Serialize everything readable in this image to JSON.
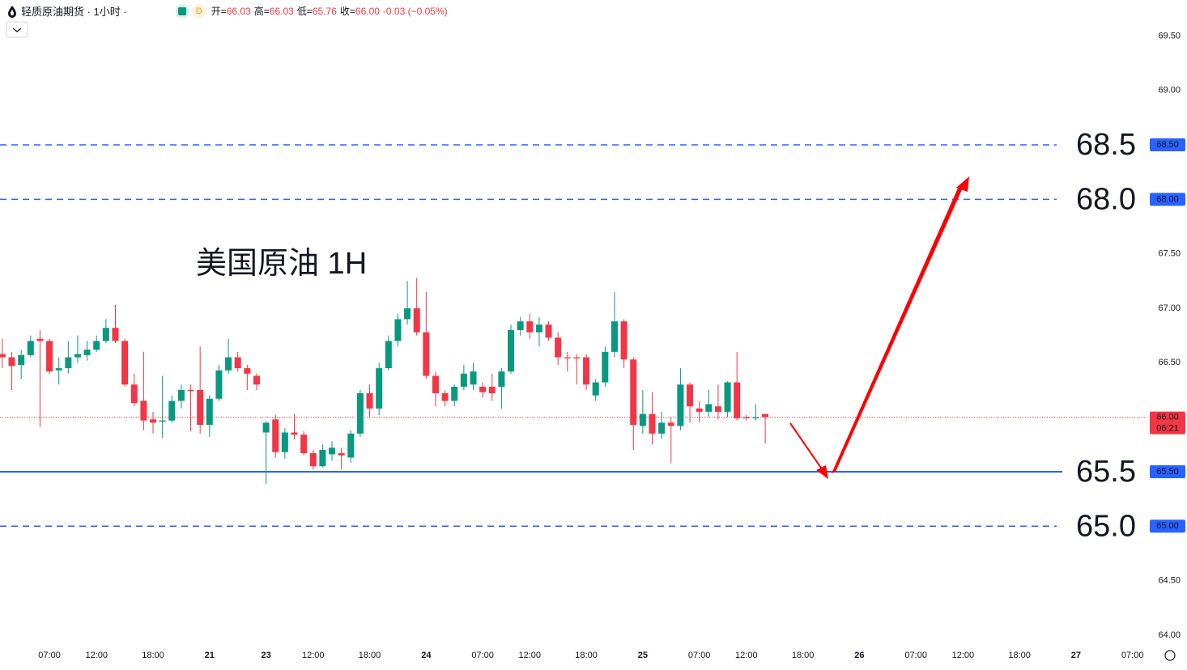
{
  "header": {
    "symbol": "轻质原油期货 · 1小时 ·",
    "badge": "D",
    "items": [
      {
        "label": "开=",
        "value": "66.03"
      },
      {
        "label": "高=",
        "value": "66.03"
      },
      {
        "label": "低=",
        "value": "65.76"
      },
      {
        "label": "收=",
        "value": "66.00"
      }
    ],
    "change": "-0.03 (−0.05%)"
  },
  "chart_data": {
    "type": "candlestick",
    "annotation": "美国原油 1H",
    "up_color": "#089981",
    "down_color": "#f23645",
    "level_color": "#2962ff",
    "xlim": [
      -0.25,
      121.4
    ],
    "ylim": [
      63.91,
      69.83
    ],
    "xticks": [
      {
        "value": 5,
        "label": "07:00"
      },
      {
        "value": 10,
        "label": "12:00"
      },
      {
        "value": 16,
        "label": "18:00"
      },
      {
        "value": 22,
        "label": "21"
      },
      {
        "value": 28,
        "label": "23"
      },
      {
        "value": 33,
        "label": "12:00"
      },
      {
        "value": 39,
        "label": "18:00"
      },
      {
        "value": 45,
        "label": "24"
      },
      {
        "value": 51,
        "label": "07:00"
      },
      {
        "value": 56,
        "label": "12:00"
      },
      {
        "value": 62,
        "label": "18:00"
      },
      {
        "value": 68,
        "label": "25"
      },
      {
        "value": 74,
        "label": "07:00"
      },
      {
        "value": 79,
        "label": "12:00"
      },
      {
        "value": 85,
        "label": "18:00"
      },
      {
        "value": 91,
        "label": "26"
      },
      {
        "value": 97,
        "label": "07:00"
      },
      {
        "value": 102,
        "label": "12:00"
      },
      {
        "value": 108,
        "label": "18:00"
      },
      {
        "value": 114,
        "label": "27"
      },
      {
        "value": 120,
        "label": "07:00"
      }
    ],
    "yticks": [
      {
        "value": 69.5,
        "label": "69.50"
      },
      {
        "value": 69,
        "label": "69.00"
      },
      {
        "value": 67.5,
        "label": "67.50"
      },
      {
        "value": 67,
        "label": "67.00"
      },
      {
        "value": 66.5,
        "label": "66.50"
      },
      {
        "value": 64.5,
        "label": "64.50"
      },
      {
        "value": 64,
        "label": "64.00"
      }
    ],
    "levels": [
      {
        "value": 68.5,
        "label": "68.5",
        "badge": "68.50",
        "style": "dashed"
      },
      {
        "value": 68,
        "label": "68.0",
        "badge": "68.00",
        "style": "dashed"
      },
      {
        "value": 65.5,
        "label": "65.5",
        "badge": "65.50",
        "style": "solid"
      },
      {
        "value": 65,
        "label": "65.0",
        "badge": "65.00",
        "style": "dashed"
      }
    ],
    "last_price": {
      "value": 66,
      "label": "66.00",
      "countdown": "06:21"
    },
    "open": [
      66.58,
      66.55,
      66.48,
      66.57,
      66.72,
      66.7,
      66.43,
      66.45,
      66.55,
      66.57,
      66.62,
      66.7,
      66.82,
      66.7,
      66.3,
      66.15,
      65.98,
      65.96,
      65.97,
      66.15,
      66.25,
      66.25,
      65.93,
      66.17,
      66.43,
      66.55,
      66.45,
      66.38,
      65.86,
      65.98,
      65.68,
      65.86,
      65.84,
      65.67,
      65.55,
      65.66,
      65.67,
      65.63,
      65.85,
      66.22,
      66.08,
      66.45,
      66.7,
      66.9,
      67.0,
      66.78,
      66.38,
      66.22,
      66.15,
      66.28,
      66.3,
      66.28,
      66.28,
      66.28,
      66.42,
      66.8,
      66.88,
      66.78,
      66.85,
      66.73,
      66.55,
      66.55,
      66.55,
      66.2,
      66.32,
      66.6,
      66.88,
      66.53,
      65.92,
      66.03,
      65.85,
      65.95,
      65.92,
      66.3,
      66.08,
      66.05,
      66.1,
      66.05,
      66.32,
      66.0,
      65.99,
      66.03
    ],
    "high": [
      66.72,
      66.6,
      66.62,
      66.75,
      66.8,
      66.72,
      66.55,
      66.7,
      66.75,
      66.7,
      66.75,
      66.9,
      67.03,
      66.72,
      66.4,
      66.6,
      66.05,
      66.38,
      66.2,
      66.3,
      66.3,
      66.65,
      66.2,
      66.48,
      66.72,
      66.6,
      66.48,
      66.4,
      65.96,
      66.02,
      65.9,
      66.03,
      65.87,
      65.7,
      65.75,
      65.78,
      65.72,
      65.88,
      66.25,
      66.3,
      66.5,
      66.75,
      66.95,
      67.25,
      67.28,
      67.15,
      66.42,
      66.25,
      66.3,
      66.48,
      66.5,
      66.32,
      66.4,
      66.45,
      66.85,
      66.92,
      66.95,
      66.92,
      66.88,
      66.78,
      66.6,
      66.58,
      66.58,
      66.35,
      66.65,
      67.15,
      66.9,
      66.55,
      66.25,
      66.23,
      66.05,
      66.0,
      66.45,
      66.32,
      66.15,
      66.25,
      66.3,
      66.33,
      66.6,
      66.02,
      66.12,
      66.03
    ],
    "low": [
      66.45,
      66.25,
      66.35,
      66.55,
      65.91,
      66.4,
      66.3,
      66.4,
      66.5,
      66.52,
      66.6,
      66.68,
      66.68,
      66.28,
      66.1,
      65.88,
      65.85,
      65.81,
      65.95,
      66.08,
      65.87,
      65.85,
      65.82,
      66.15,
      66.4,
      66.42,
      66.25,
      66.25,
      65.39,
      65.63,
      65.62,
      65.8,
      65.65,
      65.52,
      65.54,
      65.6,
      65.52,
      65.58,
      65.82,
      66.0,
      66.02,
      66.43,
      66.65,
      66.85,
      66.75,
      66.35,
      66.1,
      66.1,
      66.1,
      66.25,
      66.25,
      66.18,
      66.15,
      66.08,
      66.4,
      66.75,
      66.72,
      66.65,
      66.7,
      66.48,
      66.42,
      66.3,
      66.25,
      66.15,
      66.28,
      66.55,
      66.45,
      65.7,
      65.85,
      65.75,
      65.8,
      65.58,
      65.88,
      65.95,
      65.95,
      66.0,
      65.98,
      66.0,
      65.97,
      65.97,
      65.97,
      65.76
    ],
    "close": [
      66.55,
      66.47,
      66.57,
      66.7,
      66.7,
      66.42,
      66.45,
      66.55,
      66.58,
      66.62,
      66.7,
      66.82,
      66.7,
      66.3,
      66.13,
      65.97,
      65.95,
      65.97,
      66.15,
      66.25,
      66.24,
      65.93,
      66.17,
      66.43,
      66.55,
      66.45,
      66.4,
      66.3,
      65.95,
      65.68,
      65.86,
      65.84,
      65.67,
      65.55,
      65.7,
      65.72,
      65.65,
      65.85,
      66.22,
      66.08,
      66.45,
      66.7,
      66.9,
      67.0,
      66.78,
      66.38,
      66.22,
      66.15,
      66.28,
      66.4,
      66.42,
      66.23,
      66.22,
      66.42,
      66.8,
      66.88,
      66.78,
      66.85,
      66.73,
      66.55,
      66.54,
      66.54,
      66.3,
      66.32,
      66.6,
      66.88,
      66.53,
      65.93,
      66.03,
      65.85,
      65.95,
      65.92,
      66.3,
      66.1,
      66.05,
      66.12,
      66.05,
      66.32,
      65.99,
      65.99,
      66.0,
      66.0
    ]
  }
}
